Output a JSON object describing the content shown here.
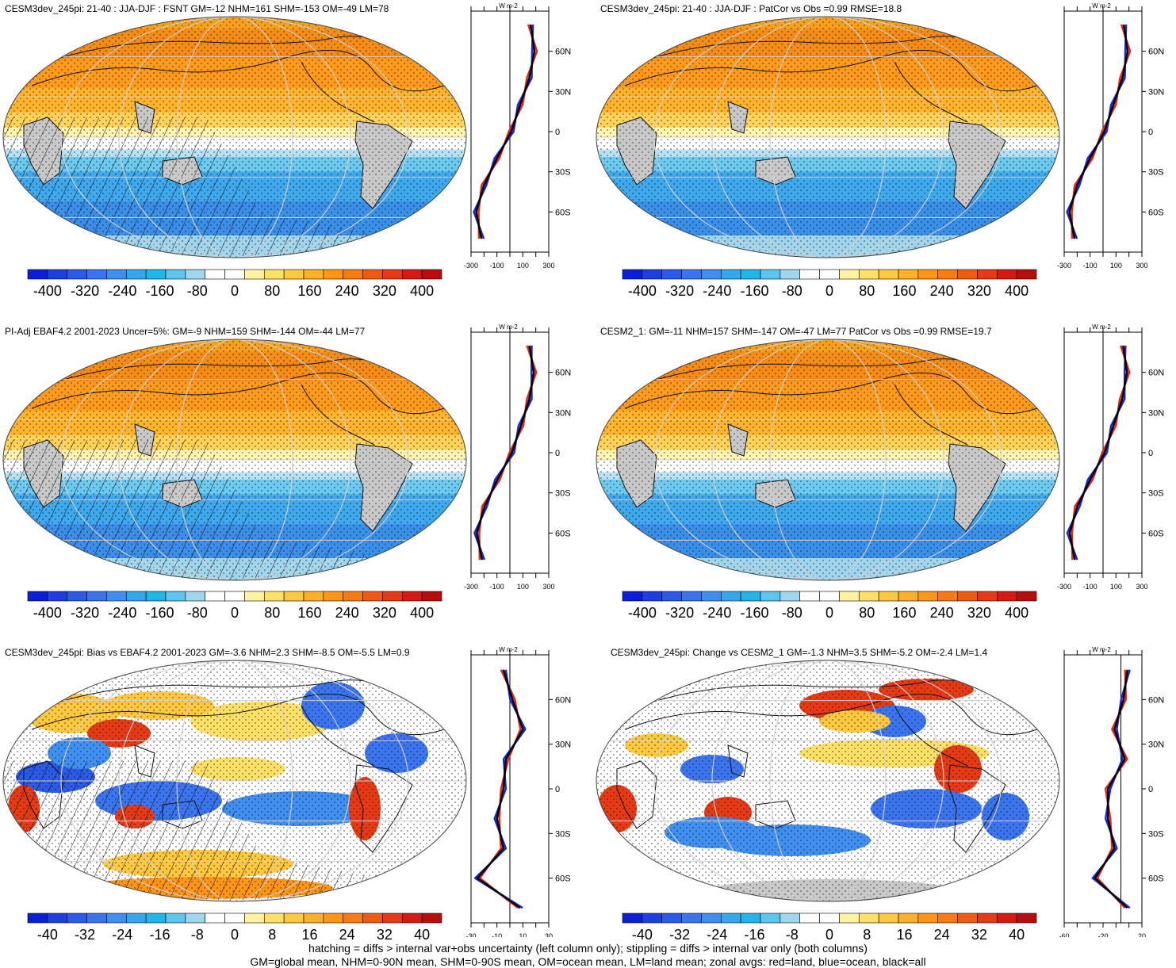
{
  "panels": [
    {
      "title": "CESM3dev_245pi: 21-40 : JJA-DJF : FSNT GM=-12 NHM=161 SHM=-153 OM=-49 LM=78",
      "kind": "field",
      "hatch": true,
      "colorbar": "abs",
      "zonal_xticks": [
        "-300",
        "-100",
        "100",
        "300"
      ]
    },
    {
      "title": "CESM3dev_245pi: 21-40 : JJA-DJF : PatCor vs Obs =0.99 RMSE=18.8",
      "kind": "field",
      "hatch": false,
      "colorbar": "abs",
      "zonal_xticks": [
        "-300",
        "-100",
        "100",
        "300"
      ]
    },
    {
      "title": "PI-Adj EBAF4.2 2001-2023 Uncer=5%: GM=-9 NHM=159 SHM=-144 OM=-44 LM=77",
      "kind": "field",
      "hatch": true,
      "colorbar": "abs",
      "zonal_xticks": [
        "-300",
        "-100",
        "100",
        "300"
      ]
    },
    {
      "title": "CESM2_1: GM=-11 NHM=157 SHM=-147 OM=-47 LM=77 PatCor vs Obs =0.99 RMSE=19.7",
      "kind": "field",
      "hatch": false,
      "colorbar": "abs",
      "zonal_xticks": [
        "-300",
        "-100",
        "100",
        "300"
      ]
    },
    {
      "title": "CESM3dev_245pi: Bias vs EBAF4.2 2001-2023 GM=-3.6 NHM=2.3 SHM=-8.5 OM=-5.5 LM=0.9",
      "kind": "diff",
      "hatch": true,
      "colorbar": "diff",
      "zonal_xticks": [
        "-30",
        "-10",
        "10",
        "30"
      ]
    },
    {
      "title": "CESM3dev_245pi: Change vs CESM2_1 GM=-1.3 NHM=3.5 SHM=-5.2 OM=-2.4 LM=1.4",
      "kind": "diff",
      "hatch": false,
      "colorbar": "diff",
      "zonal_xticks": [
        "-60",
        "-20",
        "20"
      ]
    }
  ],
  "zonal_units": "W m-2",
  "lat_ticks": [
    "60N",
    "30N",
    "0",
    "30S",
    "60S"
  ],
  "colorbars": {
    "abs": {
      "labels": [
        "-400",
        "-320",
        "-240",
        "-160",
        "-80",
        "0",
        "80",
        "160",
        "240",
        "320",
        "400"
      ]
    },
    "diff": {
      "labels": [
        "-40",
        "-32",
        "-24",
        "-16",
        "-8",
        "0",
        "8",
        "16",
        "24",
        "32",
        "40"
      ]
    }
  },
  "palette": [
    "#0a1fd8",
    "#1c3fe0",
    "#2a5ae8",
    "#3a74ee",
    "#3f8ff0",
    "#35a6f0",
    "#1fb6ea",
    "#5cc6ef",
    "#9fd6ee",
    "#ffffff",
    "#ffffff",
    "#fff3a0",
    "#ffe066",
    "#ffc93f",
    "#ffae2a",
    "#ff9516",
    "#f77b10",
    "#ef5a12",
    "#e53a14",
    "#d41a12",
    "#b80d0d"
  ],
  "series_colors": {
    "land": "#e8231e",
    "ocean": "#1627d8",
    "all": "#000000"
  },
  "footer": [
    "hatching = diffs > internal var+obs uncertainty (left column only); stippling = diffs > internal var only (both columns)",
    "GM=global mean, NHM=0-90N mean, SHM=0-90S mean, OM=ocean mean, LM=land mean; zonal avgs: red=land, blue=ocean, black=all"
  ],
  "chart_data": [
    {
      "type": "map",
      "panel": 1,
      "title": "CESM3dev_245pi: 21-40 : JJA-DJF : FSNT GM=-12 NHM=161 SHM=-153 OM=-49 LM=78",
      "zonal": {
        "lat": [
          80,
          60,
          40,
          20,
          0,
          -20,
          -40,
          -60,
          -80
        ],
        "all": [
          160,
          190,
          150,
          80,
          10,
          -100,
          -200,
          -260,
          -220
        ]
      }
    },
    {
      "type": "map",
      "panel": 2,
      "title": "CESM3dev_245pi: 21-40 : JJA-DJF : PatCor vs Obs =0.99 RMSE=18.8",
      "zonal": {
        "lat": [
          80,
          60,
          40,
          20,
          0,
          -20,
          -40,
          -60,
          -80
        ],
        "all": [
          160,
          190,
          150,
          80,
          10,
          -100,
          -200,
          -260,
          -220
        ]
      }
    },
    {
      "type": "map",
      "panel": 3,
      "title": "PI-Adj EBAF4.2 2001-2023 Uncer=5%: GM=-9 NHM=159 SHM=-144 OM=-44 LM=77",
      "zonal": {
        "lat": [
          80,
          60,
          40,
          20,
          0,
          -20,
          -40,
          -60,
          -80
        ],
        "all": [
          150,
          185,
          150,
          85,
          15,
          -95,
          -195,
          -255,
          -215
        ]
      }
    },
    {
      "type": "map",
      "panel": 4,
      "title": "CESM2_1: GM=-11 NHM=157 SHM=-147 OM=-47 LM=77 PatCor vs Obs =0.99 RMSE=19.7",
      "zonal": {
        "lat": [
          80,
          60,
          40,
          20,
          0,
          -20,
          -40,
          -60,
          -80
        ],
        "all": [
          155,
          185,
          148,
          80,
          12,
          -98,
          -198,
          -258,
          -218
        ]
      }
    },
    {
      "type": "map",
      "panel": 5,
      "title": "CESM3dev_245pi: Bias vs EBAF4.2 2001-2023 GM=-3.6 NHM=2.3 SHM=-8.5 OM=-5.5 LM=0.9",
      "zonal": {
        "lat": [
          80,
          60,
          40,
          20,
          0,
          -20,
          -40,
          -60,
          -80
        ],
        "all": [
          -5,
          2,
          10,
          -3,
          -5,
          -10,
          -5,
          -25,
          8
        ]
      }
    },
    {
      "type": "map",
      "panel": 6,
      "title": "CESM3dev_245pi: Change vs CESM2_1 GM=-1.3 NHM=3.5 SHM=-5.2 OM=-2.4 LM=1.4",
      "zonal": {
        "lat": [
          80,
          60,
          40,
          20,
          0,
          -20,
          -40,
          -60,
          -80
        ],
        "all": [
          5,
          2,
          -5,
          3,
          -10,
          -10,
          -5,
          -20,
          5
        ]
      }
    }
  ]
}
